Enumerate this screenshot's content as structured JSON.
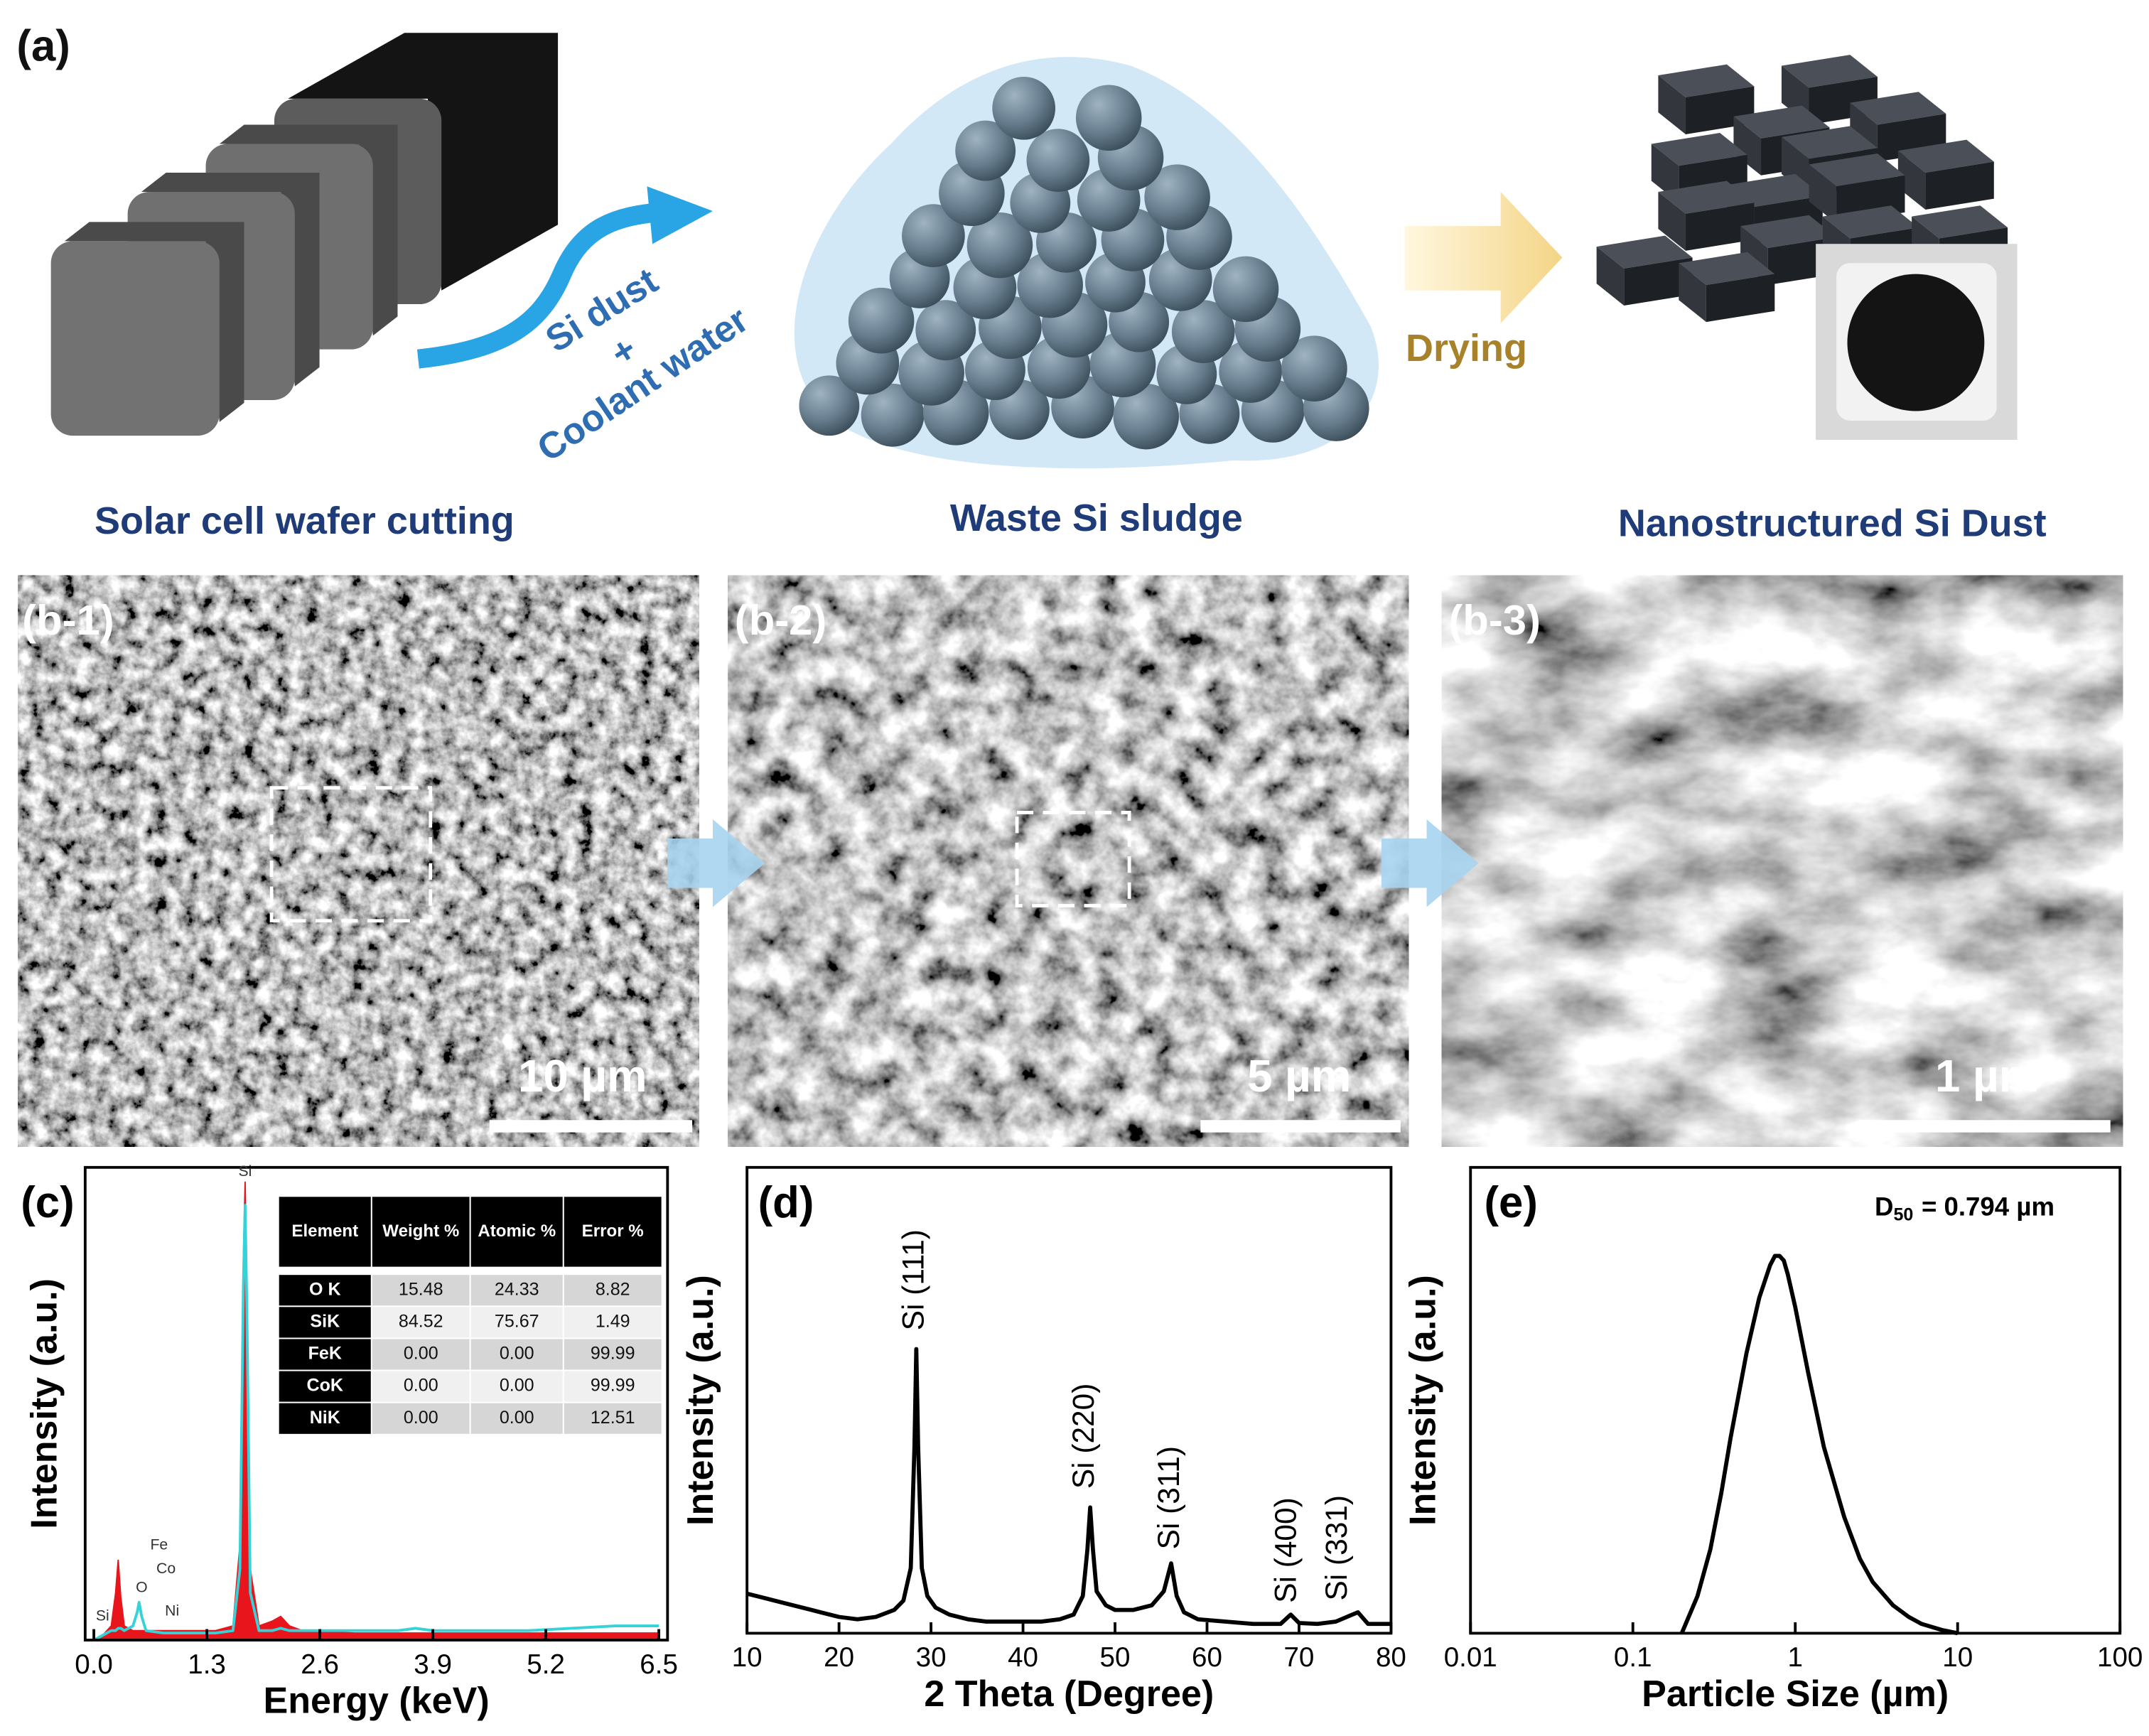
{
  "panel_a": {
    "label": "(a)",
    "arrow_text_1": "Si dust",
    "arrow_text_2": "+",
    "arrow_text_3": "Coolant water",
    "drying": "Drying",
    "captions": [
      "Solar cell wafer cutting",
      "Waste Si sludge",
      "Nanostructured Si Dust"
    ]
  },
  "panel_b": {
    "images": [
      {
        "label": "(b-1)",
        "scale_bar": "10 µm"
      },
      {
        "label": "(b-2)",
        "scale_bar": "5 µm"
      },
      {
        "label": "(b-3)",
        "scale_bar": "1 µm"
      }
    ]
  },
  "chart_data": [
    {
      "type": "line",
      "label": "(c)",
      "x_label": "Energy (keV)",
      "y_label": "Intensity (a.u.)",
      "x": [
        0.0,
        0.1,
        0.2,
        0.25,
        0.28,
        0.31,
        0.35,
        0.45,
        0.5,
        0.52,
        0.55,
        0.6,
        0.8,
        1.0,
        1.4,
        1.6,
        1.68,
        1.72,
        1.74,
        1.76,
        1.8,
        1.9,
        2.05,
        2.15,
        2.25,
        2.4,
        3.0,
        3.5,
        3.7,
        3.9,
        5.0,
        6.0,
        6.5
      ],
      "series": [
        {
          "color": "#e8161c",
          "fill": true,
          "values": [
            0,
            1,
            3,
            10,
            17,
            9,
            3,
            2,
            2,
            2,
            2,
            2,
            2,
            2,
            2,
            3,
            20,
            80,
            97,
            75,
            15,
            3,
            4,
            5,
            3,
            2,
            1.5,
            1.5,
            1.5,
            1.5,
            1.5,
            1.5,
            1.5
          ]
        },
        {
          "color": "#35d3d8",
          "fill": false,
          "values": [
            0,
            1,
            2,
            2,
            2.5,
            2.5,
            2,
            3,
            6,
            8,
            5,
            2,
            1.5,
            1.5,
            1.5,
            2,
            15,
            75,
            92,
            70,
            10,
            2,
            2,
            2.5,
            2,
            2,
            2,
            2,
            2.5,
            2,
            2,
            3,
            3
          ]
        }
      ],
      "xlim": [
        -0.1,
        6.6
      ],
      "ylim": [
        0,
        100
      ],
      "xticks": [
        {
          "value": 0,
          "label": "0.0"
        },
        1.3,
        2.6,
        3.9,
        5.2,
        6.5
      ],
      "annotations": [
        {
          "text": "Si",
          "x": 1.74,
          "y": 99
        },
        {
          "text": "Fe",
          "x": 0.75,
          "y": 20
        },
        {
          "text": "Co",
          "x": 0.83,
          "y": 15
        },
        {
          "text": "O",
          "x": 0.55,
          "y": 11
        },
        {
          "text": "Ni",
          "x": 0.9,
          "y": 6
        },
        {
          "text": "Si",
          "x": 0.1,
          "y": 5
        }
      ],
      "table": {
        "header": [
          "Element",
          "Weight %",
          "Atomic %",
          "Error %"
        ],
        "rows": [
          [
            "O K",
            "15.48",
            "24.33",
            "8.82"
          ],
          [
            "SiK",
            "84.52",
            "75.67",
            "1.49"
          ],
          [
            "FeK",
            "0.00",
            "0.00",
            "99.99"
          ],
          [
            "CoK",
            "0.00",
            "0.00",
            "99.99"
          ],
          [
            "NiK",
            "0.00",
            "0.00",
            "12.51"
          ]
        ]
      }
    },
    {
      "type": "line",
      "label": "(d)",
      "x_label": "2 Theta (Degree)",
      "y_label": "Intensity (a.u.)",
      "x": [
        10,
        12,
        14,
        16,
        18,
        20,
        22,
        24,
        26,
        27,
        27.8,
        28.2,
        28.4,
        28.6,
        29,
        29.6,
        30.5,
        32,
        34,
        36,
        38,
        40,
        42,
        44,
        45.5,
        46.5,
        47.0,
        47.3,
        47.6,
        48,
        49,
        50,
        52,
        54,
        55.3,
        56.1,
        56.7,
        57.5,
        59,
        62,
        65,
        68,
        69.1,
        70,
        72,
        74,
        76.4,
        77.5,
        80
      ],
      "series": [
        {
          "color": "#000000",
          "fill": false,
          "values": [
            8.5,
            7.5,
            6.5,
            5.5,
            4.5,
            3.5,
            3,
            3.5,
            5,
            7,
            14,
            40,
            61,
            40,
            14,
            8,
            5.5,
            4,
            3,
            2.5,
            2.5,
            2.5,
            2.5,
            3,
            4,
            8,
            18,
            27,
            18,
            9,
            6,
            5,
            5,
            6,
            9,
            15,
            8,
            4.5,
            3,
            2.5,
            2,
            2,
            4,
            2.2,
            2,
            2.5,
            4.5,
            2,
            2
          ]
        }
      ],
      "xlim": [
        10,
        80
      ],
      "ylim": [
        0,
        100
      ],
      "xticks": [
        10,
        20,
        30,
        40,
        50,
        60,
        70,
        80
      ],
      "annotations": [
        {
          "text": "Si (111)",
          "x": 28.3,
          "y": 65,
          "vertical": true
        },
        {
          "text": "Si (220)",
          "x": 46.8,
          "y": 31,
          "vertical": true
        },
        {
          "text": "Si (311)",
          "x": 56.1,
          "y": 18,
          "vertical": true
        },
        {
          "text": "Si (400)",
          "x": 68.8,
          "y": 6.5,
          "vertical": true
        },
        {
          "text": "Si (331)",
          "x": 74.3,
          "y": 7,
          "vertical": true
        }
      ]
    },
    {
      "type": "line",
      "label": "(e)",
      "x_label": "Particle Size (µm)",
      "y_label": "Intensity (a.u.)",
      "log_x": true,
      "x": [
        0.2,
        0.25,
        0.3,
        0.35,
        0.4,
        0.5,
        0.6,
        0.7,
        0.75,
        0.8,
        0.85,
        0.9,
        1,
        1.2,
        1.5,
        2,
        2.5,
        3,
        4,
        5,
        6,
        8,
        10
      ],
      "series": [
        {
          "color": "#000000",
          "fill": false,
          "values": [
            0,
            8,
            18,
            30,
            42,
            60,
            72,
            79,
            81,
            81,
            80,
            77,
            70,
            56,
            40,
            25,
            16,
            11,
            6,
            3.5,
            2,
            0.7,
            0
          ]
        }
      ],
      "xlim": [
        0.01,
        100
      ],
      "ylim": [
        0,
        100
      ],
      "xticks": [
        0.01,
        0.1,
        1,
        10,
        100
      ],
      "d50": {
        "symbol": "D",
        "subscript": "50",
        "value_text": "= 0.794 µm"
      }
    }
  ]
}
